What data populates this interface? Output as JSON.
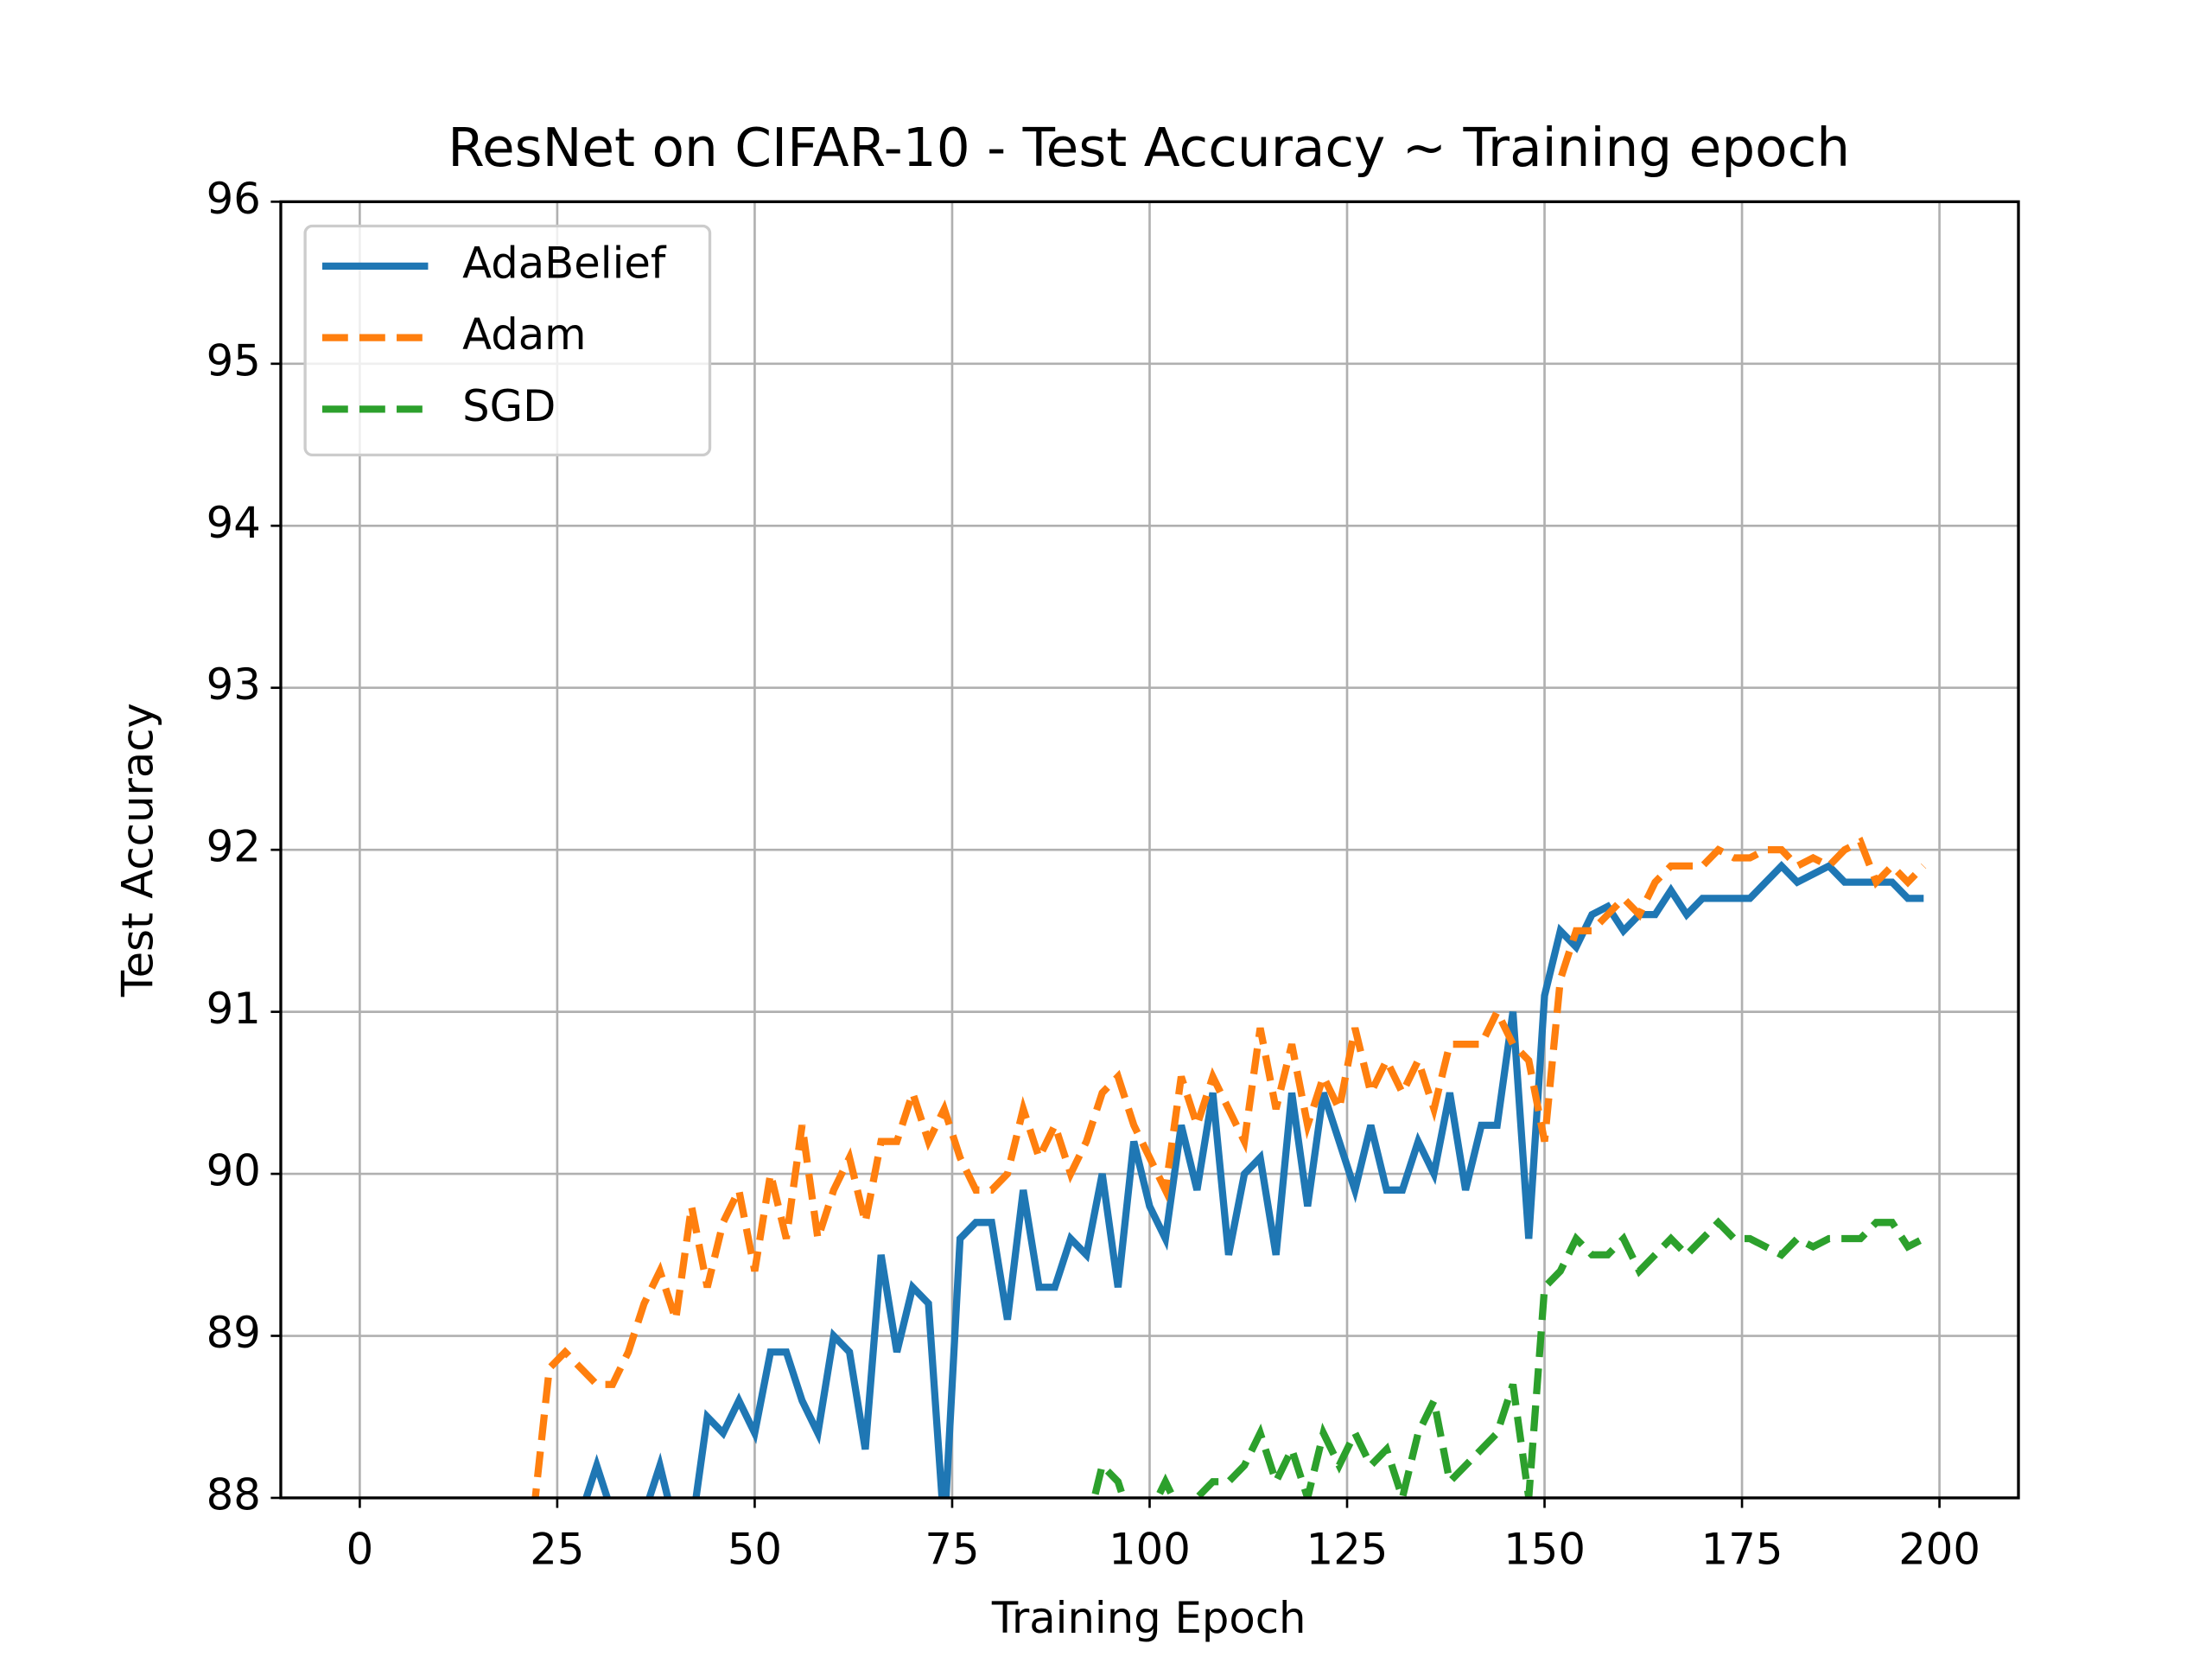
{
  "chart_data": {
    "type": "line",
    "title": "ResNet on CIFAR-10 - Test Accuracy ~ Training epoch",
    "xlabel": "Training Epoch",
    "ylabel": "Test Accuracy",
    "x": [
      20,
      22,
      24,
      26,
      28,
      30,
      32,
      34,
      36,
      38,
      40,
      42,
      44,
      46,
      48,
      50,
      52,
      54,
      56,
      58,
      60,
      62,
      64,
      66,
      68,
      70,
      72,
      74,
      76,
      78,
      80,
      82,
      84,
      86,
      88,
      90,
      92,
      94,
      96,
      98,
      100,
      102,
      104,
      106,
      108,
      110,
      112,
      114,
      116,
      118,
      120,
      122,
      124,
      126,
      128,
      130,
      132,
      134,
      136,
      138,
      140,
      142,
      144,
      146,
      148,
      150,
      152,
      154,
      156,
      158,
      160,
      162,
      164,
      166,
      168,
      170,
      172,
      174,
      176,
      178,
      180,
      182,
      184,
      186,
      188,
      190,
      192,
      194,
      196,
      198
    ],
    "series": [
      {
        "name": "AdaBelief",
        "color": "#1f77b4",
        "dash": false,
        "values": [
          null,
          null,
          null,
          null,
          87.9,
          88.2,
          87.9,
          87.8,
          87.9,
          88.2,
          87.8,
          87.8,
          88.5,
          88.4,
          88.6,
          88.4,
          88.9,
          88.9,
          88.6,
          88.4,
          89.0,
          88.9,
          88.3,
          89.5,
          88.9,
          89.3,
          89.2,
          87.8,
          89.6,
          89.7,
          89.7,
          89.1,
          89.9,
          89.3,
          89.3,
          89.6,
          89.5,
          90.0,
          89.3,
          90.2,
          89.8,
          89.6,
          90.3,
          89.9,
          90.5,
          89.5,
          90.0,
          90.1,
          89.5,
          90.5,
          89.8,
          90.5,
          90.2,
          89.9,
          90.3,
          89.9,
          89.9,
          90.2,
          90.0,
          90.5,
          89.9,
          90.3,
          90.3,
          91.0,
          89.6,
          91.1,
          91.5,
          91.4,
          91.6,
          91.65,
          91.5,
          91.6,
          91.6,
          91.75,
          91.6,
          91.7,
          91.7,
          91.7,
          91.7,
          91.8,
          91.9,
          91.8,
          91.85,
          91.9,
          91.8,
          91.8,
          91.8,
          91.8,
          91.7,
          91.7
        ]
      },
      {
        "name": "Adam",
        "color": "#ff7f0e",
        "dash": true,
        "values": [
          null,
          87.9,
          88.8,
          88.9,
          88.8,
          88.7,
          88.7,
          88.9,
          89.2,
          89.4,
          89.1,
          89.8,
          89.3,
          89.7,
          89.9,
          89.4,
          90.0,
          89.6,
          90.3,
          89.6,
          89.9,
          90.1,
          89.7,
          90.2,
          90.2,
          90.5,
          90.2,
          90.4,
          90.1,
          89.9,
          89.9,
          90.0,
          90.4,
          90.1,
          90.3,
          90.0,
          90.2,
          90.5,
          90.6,
          90.3,
          90.1,
          89.9,
          90.6,
          90.3,
          90.6,
          90.4,
          90.2,
          90.9,
          90.4,
          90.8,
          90.3,
          90.6,
          90.4,
          90.9,
          90.5,
          90.7,
          90.5,
          90.7,
          90.4,
          90.8,
          90.8,
          90.8,
          91.0,
          90.8,
          90.7,
          90.2,
          91.2,
          91.5,
          91.5,
          91.6,
          91.7,
          91.6,
          91.8,
          91.9,
          91.9,
          91.9,
          92.0,
          91.95,
          91.95,
          92.0,
          92.0,
          91.9,
          91.95,
          91.9,
          92.0,
          92.05,
          91.8,
          91.9,
          91.8,
          91.9
        ]
      },
      {
        "name": "SGD",
        "color": "#2ca02c",
        "dash": true,
        "values": [
          null,
          null,
          null,
          null,
          null,
          null,
          null,
          null,
          null,
          null,
          null,
          null,
          null,
          null,
          null,
          null,
          null,
          null,
          null,
          null,
          null,
          null,
          null,
          null,
          null,
          null,
          null,
          null,
          null,
          null,
          null,
          null,
          null,
          null,
          null,
          null,
          87.8,
          88.2,
          88.1,
          87.8,
          87.9,
          88.1,
          87.9,
          88.0,
          88.1,
          88.1,
          88.2,
          88.4,
          88.1,
          88.3,
          88.0,
          88.4,
          88.2,
          88.4,
          88.2,
          88.3,
          88.0,
          88.4,
          88.6,
          88.1,
          88.2,
          88.3,
          88.4,
          88.7,
          88.0,
          89.3,
          89.4,
          89.6,
          89.5,
          89.5,
          89.6,
          89.4,
          89.5,
          89.6,
          89.5,
          89.6,
          89.7,
          89.6,
          89.6,
          89.55,
          89.5,
          89.6,
          89.55,
          89.6,
          89.6,
          89.6,
          89.7,
          89.7,
          89.55,
          89.6
        ]
      }
    ],
    "xlim": [
      -10,
      210
    ],
    "ylim": [
      88,
      96
    ],
    "xticks": [
      0,
      25,
      50,
      75,
      100,
      125,
      150,
      175,
      200
    ],
    "yticks": [
      88,
      89,
      90,
      91,
      92,
      93,
      94,
      95,
      96
    ],
    "grid": true,
    "legend": "upper left"
  }
}
